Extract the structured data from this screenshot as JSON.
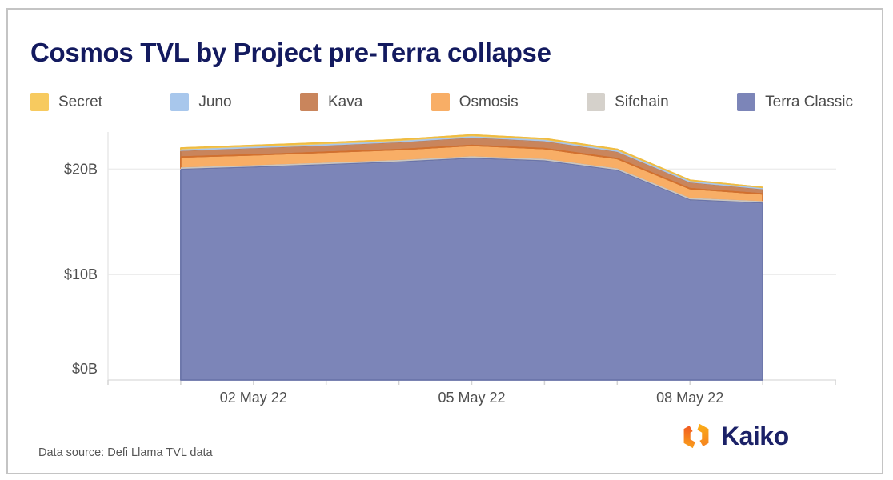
{
  "title": "Cosmos TVL by Project pre-Terra collapse",
  "legend": {
    "items": [
      {
        "key": "secret",
        "label": "Secret",
        "color": "#F7CA5F"
      },
      {
        "key": "juno",
        "label": "Juno",
        "color": "#A8C7EC"
      },
      {
        "key": "kava",
        "label": "Kava",
        "color": "#C9855C"
      },
      {
        "key": "osmosis",
        "label": "Osmosis",
        "color": "#F8AE66"
      },
      {
        "key": "sifchain",
        "label": "Sifchain",
        "color": "#D5D1CB"
      },
      {
        "key": "terra-classic",
        "label": "Terra Classic",
        "color": "#7C85B8"
      }
    ]
  },
  "footer": {
    "data_source": "Data source: Defi Llama TVL data",
    "brand": "Kaiko"
  },
  "colors": {
    "title_navy": "#131a5f",
    "brand_navy": "#1b2167",
    "axis_text": "#4f4f4f",
    "grid_line": "#ededed",
    "logo_orange": "#f26e1d",
    "logo_amber": "#fbad18"
  },
  "chart_data": {
    "type": "area",
    "stacked": true,
    "title": "Cosmos TVL by Project pre-Terra collapse",
    "unit": "USD billions (TVL)",
    "x": [
      "01 May 22",
      "02 May 22",
      "03 May 22",
      "04 May 22",
      "05 May 22",
      "06 May 22",
      "07 May 22",
      "08 May 22",
      "09 May 22"
    ],
    "series": [
      {
        "name": "Terra Classic",
        "color": "#7C85B8",
        "stroke": "#6A74A9",
        "values": [
          20.0,
          20.2,
          20.45,
          20.7,
          21.05,
          20.8,
          19.9,
          17.1,
          16.8
        ]
      },
      {
        "name": "Sifchain",
        "color": "#D5D1CB",
        "stroke": "#CBC6BF",
        "values": [
          0.1,
          0.1,
          0.1,
          0.1,
          0.1,
          0.1,
          0.1,
          0.1,
          0.1
        ]
      },
      {
        "name": "Osmosis",
        "color": "#F8AE66",
        "stroke": "#D2702E",
        "values": [
          1.05,
          1.05,
          1.05,
          1.05,
          1.1,
          1.05,
          1.0,
          0.95,
          0.75
        ]
      },
      {
        "name": "Kava",
        "color": "#C9855C",
        "stroke": "#BE7A4F",
        "values": [
          0.6,
          0.65,
          0.65,
          0.7,
          0.75,
          0.7,
          0.65,
          0.6,
          0.45
        ]
      },
      {
        "name": "Juno",
        "color": "#A8C7EC",
        "stroke": "#A8C7EC",
        "values": [
          0.05,
          0.05,
          0.05,
          0.05,
          0.05,
          0.05,
          0.05,
          0.05,
          0.05
        ]
      },
      {
        "name": "Secret",
        "color": "#F7CA5F",
        "stroke": "#EFBC41",
        "values": [
          0.2,
          0.2,
          0.2,
          0.2,
          0.2,
          0.2,
          0.18,
          0.15,
          0.12
        ]
      }
    ],
    "yticks": [
      {
        "value": 0,
        "label": "$0B"
      },
      {
        "value": 10,
        "label": "$10B"
      },
      {
        "value": 20,
        "label": "$20B"
      }
    ],
    "xticks": [
      {
        "index": 1,
        "label": "02 May 22"
      },
      {
        "index": 4,
        "label": "05 May 22"
      },
      {
        "index": 7,
        "label": "08 May 22"
      }
    ],
    "ylim": [
      0,
      23.5
    ],
    "grid": "horizontal",
    "legend_position": "top"
  }
}
